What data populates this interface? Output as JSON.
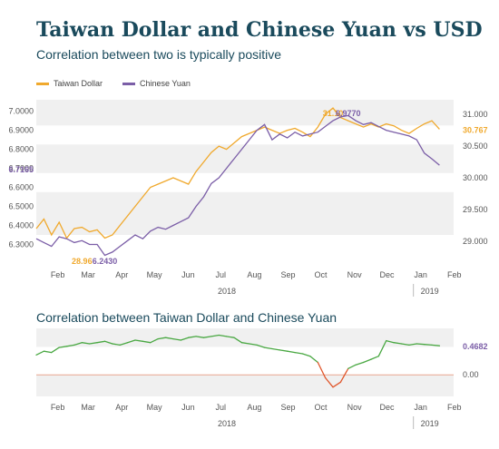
{
  "header": {
    "title": "Taiwan Dollar and Chinese Yuan vs USD",
    "subtitle": "Correlation between two is typically positive",
    "panel2_title": "Correlation between Taiwan Dollar and Chinese Yuan"
  },
  "legend": {
    "items": [
      {
        "label": "Taiwan Dollar",
        "color": "#f0a92d"
      },
      {
        "label": "Chinese Yuan",
        "color": "#7b5ea7"
      }
    ]
  },
  "colors": {
    "twd": "#f0a92d",
    "cny": "#7b5ea7",
    "corr_positive": "#4aa843",
    "corr_negative": "#e0562b",
    "band": "#f0f0f0",
    "title": "#1a4a5c"
  },
  "chart_data": [
    {
      "type": "line",
      "name": "exchange-rates",
      "x_ticks": [
        "Feb",
        "Mar",
        "Apr",
        "May",
        "Jun",
        "Jul",
        "Aug",
        "Sep",
        "Oct",
        "Nov",
        "Dec",
        "Jan",
        "Feb"
      ],
      "x_year_labels": [
        "2018",
        "2019"
      ],
      "left_axis": {
        "ticks": [
          "6.3000",
          "6.4000",
          "6.5000",
          "6.6000",
          "6.7000",
          "6.8000",
          "6.9000",
          "7.0000"
        ],
        "range": [
          6.25,
          7.06
        ]
      },
      "right_axis": {
        "ticks": [
          "29.000",
          "29.500",
          "30.000",
          "30.500",
          "31.000"
        ],
        "range": [
          28.8,
          31.23
        ]
      },
      "series": [
        {
          "name": "Taiwan Dollar",
          "axis": "right",
          "points": [
            [
              "2018-01-19",
              29.2
            ],
            [
              "2018-01-26",
              29.35
            ],
            [
              "2018-02-02",
              29.1
            ],
            [
              "2018-02-09",
              29.3
            ],
            [
              "2018-02-16",
              29.05
            ],
            [
              "2018-02-23",
              29.2
            ],
            [
              "2018-03-02",
              29.22
            ],
            [
              "2018-03-09",
              29.15
            ],
            [
              "2018-03-16",
              29.18
            ],
            [
              "2018-03-23",
              29.05
            ],
            [
              "2018-03-30",
              29.1
            ],
            [
              "2018-04-06",
              29.25
            ],
            [
              "2018-04-13",
              29.4
            ],
            [
              "2018-04-20",
              29.55
            ],
            [
              "2018-04-27",
              29.7
            ],
            [
              "2018-05-04",
              29.85
            ],
            [
              "2018-05-11",
              29.9
            ],
            [
              "2018-05-18",
              29.95
            ],
            [
              "2018-05-25",
              30.0
            ],
            [
              "2018-06-01",
              29.95
            ],
            [
              "2018-06-08",
              29.9
            ],
            [
              "2018-06-15",
              30.1
            ],
            [
              "2018-06-22",
              30.25
            ],
            [
              "2018-06-29",
              30.4
            ],
            [
              "2018-07-06",
              30.5
            ],
            [
              "2018-07-13",
              30.45
            ],
            [
              "2018-07-20",
              30.55
            ],
            [
              "2018-07-27",
              30.65
            ],
            [
              "2018-08-03",
              30.7
            ],
            [
              "2018-08-10",
              30.75
            ],
            [
              "2018-08-17",
              30.8
            ],
            [
              "2018-08-24",
              30.75
            ],
            [
              "2018-08-31",
              30.7
            ],
            [
              "2018-09-07",
              30.75
            ],
            [
              "2018-09-14",
              30.78
            ],
            [
              "2018-09-21",
              30.72
            ],
            [
              "2018-09-28",
              30.65
            ],
            [
              "2018-10-05",
              30.8
            ],
            [
              "2018-10-12",
              31.0
            ],
            [
              "2018-10-19",
              31.1
            ],
            [
              "2018-10-26",
              30.95
            ],
            [
              "2018-11-02",
              30.9
            ],
            [
              "2018-11-09",
              30.85
            ],
            [
              "2018-11-16",
              30.8
            ],
            [
              "2018-11-23",
              30.85
            ],
            [
              "2018-11-30",
              30.8
            ],
            [
              "2018-12-07",
              30.85
            ],
            [
              "2018-12-14",
              30.82
            ],
            [
              "2018-12-21",
              30.75
            ],
            [
              "2018-12-28",
              30.7
            ],
            [
              "2019-01-04",
              30.78
            ],
            [
              "2019-01-11",
              30.85
            ],
            [
              "2019-01-18",
              30.9
            ],
            [
              "2019-01-25",
              30.767
            ]
          ]
        },
        {
          "name": "Chinese Yuan",
          "axis": "left",
          "points": [
            [
              "2018-01-19",
              6.33
            ],
            [
              "2018-01-26",
              6.31
            ],
            [
              "2018-02-02",
              6.29
            ],
            [
              "2018-02-09",
              6.34
            ],
            [
              "2018-02-16",
              6.33
            ],
            [
              "2018-02-23",
              6.31
            ],
            [
              "2018-03-02",
              6.32
            ],
            [
              "2018-03-09",
              6.3
            ],
            [
              "2018-03-16",
              6.3
            ],
            [
              "2018-03-23",
              6.243
            ],
            [
              "2018-03-30",
              6.26
            ],
            [
              "2018-04-06",
              6.29
            ],
            [
              "2018-04-13",
              6.32
            ],
            [
              "2018-04-20",
              6.35
            ],
            [
              "2018-04-27",
              6.33
            ],
            [
              "2018-05-04",
              6.37
            ],
            [
              "2018-05-11",
              6.39
            ],
            [
              "2018-05-18",
              6.38
            ],
            [
              "2018-05-25",
              6.4
            ],
            [
              "2018-06-01",
              6.42
            ],
            [
              "2018-06-08",
              6.44
            ],
            [
              "2018-06-15",
              6.5
            ],
            [
              "2018-06-22",
              6.55
            ],
            [
              "2018-06-29",
              6.62
            ],
            [
              "2018-07-06",
              6.65
            ],
            [
              "2018-07-13",
              6.7
            ],
            [
              "2018-07-20",
              6.75
            ],
            [
              "2018-07-27",
              6.8
            ],
            [
              "2018-08-03",
              6.85
            ],
            [
              "2018-08-10",
              6.9
            ],
            [
              "2018-08-17",
              6.93
            ],
            [
              "2018-08-24",
              6.85
            ],
            [
              "2018-08-31",
              6.88
            ],
            [
              "2018-09-07",
              6.86
            ],
            [
              "2018-09-14",
              6.89
            ],
            [
              "2018-09-21",
              6.87
            ],
            [
              "2018-09-28",
              6.88
            ],
            [
              "2018-10-05",
              6.89
            ],
            [
              "2018-10-12",
              6.92
            ],
            [
              "2018-10-19",
              6.95
            ],
            [
              "2018-10-26",
              6.97
            ],
            [
              "2018-11-02",
              6.977
            ],
            [
              "2018-11-09",
              6.95
            ],
            [
              "2018-11-16",
              6.93
            ],
            [
              "2018-11-23",
              6.94
            ],
            [
              "2018-11-30",
              6.92
            ],
            [
              "2018-12-07",
              6.9
            ],
            [
              "2018-12-14",
              6.89
            ],
            [
              "2018-12-21",
              6.88
            ],
            [
              "2018-12-28",
              6.87
            ],
            [
              "2019-01-04",
              6.85
            ],
            [
              "2019-01-11",
              6.78
            ],
            [
              "2019-01-18",
              6.75
            ],
            [
              "2019-01-25",
              6.7165
            ]
          ]
        }
      ],
      "annotations": [
        {
          "text": "28.96",
          "series": "Taiwan Dollar",
          "x": "2018-03-02",
          "value": 28.96
        },
        {
          "text": "6.2430",
          "series": "Chinese Yuan",
          "x": "2018-03-23",
          "value": 6.243
        },
        {
          "text": "31.10",
          "series": "Taiwan Dollar",
          "x": "2018-10-19",
          "value": 31.1
        },
        {
          "text": "6.9770",
          "series": "Chinese Yuan",
          "x": "2018-11-02",
          "value": 6.977
        },
        {
          "text": "30.767",
          "series": "Taiwan Dollar",
          "x": "2019-01-25",
          "value": 30.767
        },
        {
          "text": "6.7165",
          "series": "Chinese Yuan",
          "x": "2019-01-25",
          "value": 6.7165
        }
      ]
    },
    {
      "type": "line",
      "name": "correlation",
      "x_ticks": [
        "Feb",
        "Mar",
        "Apr",
        "May",
        "Jun",
        "Jul",
        "Aug",
        "Sep",
        "Oct",
        "Nov",
        "Dec",
        "Jan",
        "Feb"
      ],
      "x_year_labels": [
        "2018",
        "2019"
      ],
      "y_axis": {
        "ticks": [
          "0.00"
        ],
        "range": [
          -0.35,
          0.75
        ]
      },
      "series": [
        {
          "name": "Correlation",
          "points": [
            [
              "2018-01-19",
              0.32
            ],
            [
              "2018-01-26",
              0.38
            ],
            [
              "2018-02-02",
              0.36
            ],
            [
              "2018-02-09",
              0.44
            ],
            [
              "2018-02-16",
              0.46
            ],
            [
              "2018-02-23",
              0.48
            ],
            [
              "2018-03-02",
              0.52
            ],
            [
              "2018-03-09",
              0.5
            ],
            [
              "2018-03-16",
              0.52
            ],
            [
              "2018-03-23",
              0.54
            ],
            [
              "2018-03-30",
              0.5
            ],
            [
              "2018-04-06",
              0.48
            ],
            [
              "2018-04-13",
              0.52
            ],
            [
              "2018-04-20",
              0.56
            ],
            [
              "2018-04-27",
              0.54
            ],
            [
              "2018-05-04",
              0.52
            ],
            [
              "2018-05-11",
              0.58
            ],
            [
              "2018-05-18",
              0.6
            ],
            [
              "2018-05-25",
              0.58
            ],
            [
              "2018-06-01",
              0.56
            ],
            [
              "2018-06-08",
              0.6
            ],
            [
              "2018-06-15",
              0.62
            ],
            [
              "2018-06-22",
              0.6
            ],
            [
              "2018-06-29",
              0.62
            ],
            [
              "2018-07-06",
              0.64
            ],
            [
              "2018-07-13",
              0.62
            ],
            [
              "2018-07-20",
              0.6
            ],
            [
              "2018-07-27",
              0.52
            ],
            [
              "2018-08-03",
              0.5
            ],
            [
              "2018-08-10",
              0.48
            ],
            [
              "2018-08-17",
              0.44
            ],
            [
              "2018-08-24",
              0.42
            ],
            [
              "2018-08-31",
              0.4
            ],
            [
              "2018-09-07",
              0.38
            ],
            [
              "2018-09-14",
              0.36
            ],
            [
              "2018-09-21",
              0.34
            ],
            [
              "2018-09-28",
              0.3
            ],
            [
              "2018-10-05",
              0.2
            ],
            [
              "2018-10-12",
              -0.05
            ],
            [
              "2018-10-19",
              -0.2
            ],
            [
              "2018-10-26",
              -0.12
            ],
            [
              "2018-11-02",
              0.1
            ],
            [
              "2018-11-09",
              0.16
            ],
            [
              "2018-11-16",
              0.2
            ],
            [
              "2018-11-23",
              0.25
            ],
            [
              "2018-11-30",
              0.3
            ],
            [
              "2018-12-07",
              0.55
            ],
            [
              "2018-12-14",
              0.52
            ],
            [
              "2018-12-21",
              0.5
            ],
            [
              "2018-12-28",
              0.48
            ],
            [
              "2019-01-04",
              0.5
            ],
            [
              "2019-01-11",
              0.49
            ],
            [
              "2019-01-18",
              0.48
            ],
            [
              "2019-01-25",
              0.4682
            ]
          ]
        }
      ],
      "annotations": [
        {
          "text": "0.4682",
          "x": "2019-01-25",
          "value": 0.4682
        }
      ]
    }
  ]
}
